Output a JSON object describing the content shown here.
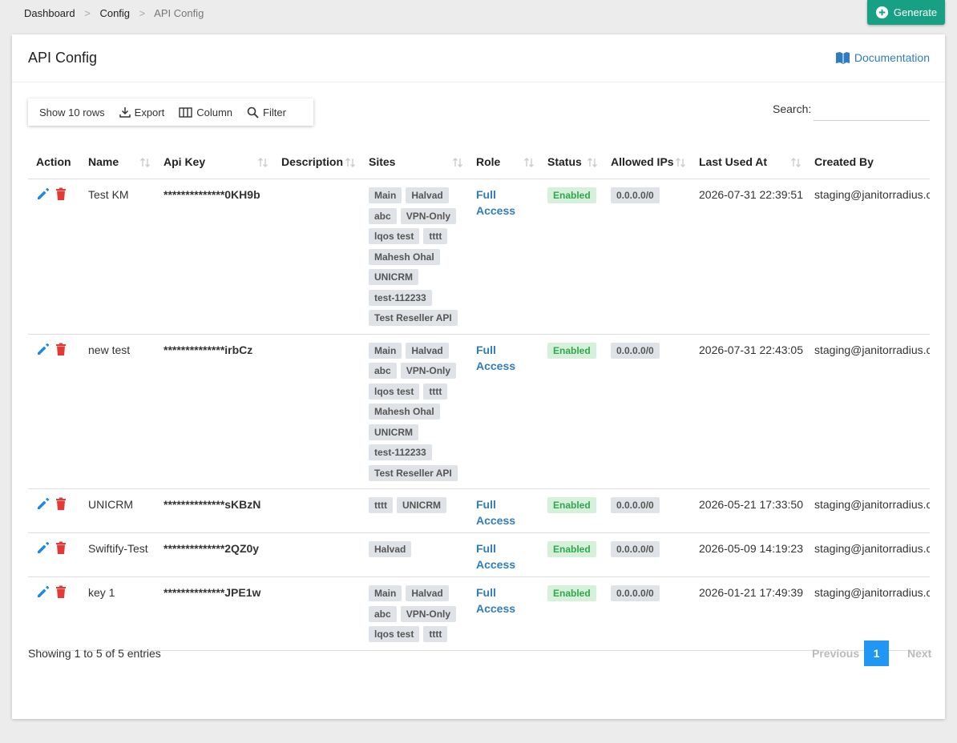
{
  "breadcrumb": [
    "Dashboard",
    "Config",
    "API Config"
  ],
  "breadcrumb_separator": ">",
  "generate_button": "Generate",
  "card": {
    "title": "API Config",
    "documentation": "Documentation"
  },
  "toolbar": [
    "Show 10 rows",
    "Export",
    "Column",
    "Filter"
  ],
  "search_label": "Search:",
  "table": {
    "columns": [
      "Action",
      "Name",
      "Api Key",
      "Description",
      "Sites",
      "Role",
      "Status",
      "Allowed IPs",
      "Last Used At",
      "Created By"
    ],
    "rows": [
      {
        "name": "Test KM",
        "api_key": "**************0KH9b",
        "sites": [
          "Main",
          "Halvad",
          "abc",
          "VPN-Only",
          "lqos test",
          "tttt",
          "Mahesh Ohal",
          "UNICRM",
          "test-112233",
          "Test Reseller API"
        ],
        "role": "Full Access",
        "status": "Enabled",
        "allowed_ips": "0.0.0.0/0",
        "last_used_at": "2026-07-31 22:39:51",
        "created_by": "staging@janitorradius.co"
      },
      {
        "name": "new test",
        "api_key": "**************irbCz",
        "sites": [
          "Main",
          "Halvad",
          "abc",
          "VPN-Only",
          "lqos test",
          "tttt",
          "Mahesh Ohal",
          "UNICRM",
          "test-112233",
          "Test Reseller API"
        ],
        "role": "Full Access",
        "status": "Enabled",
        "allowed_ips": "0.0.0.0/0",
        "last_used_at": "2026-07-31 22:43:05",
        "created_by": "staging@janitorradius.co"
      },
      {
        "name": "UNICRM",
        "api_key": "**************sKBzN",
        "sites": [
          "tttt",
          "UNICRM"
        ],
        "role": "Full Access",
        "status": "Enabled",
        "allowed_ips": "0.0.0.0/0",
        "last_used_at": "2026-05-21 17:33:50",
        "created_by": "staging@janitorradius.co"
      },
      {
        "name": "Swiftify-Test",
        "api_key": "**************2QZ0y",
        "sites": [
          "Halvad"
        ],
        "role": "Full Access",
        "status": "Enabled",
        "allowed_ips": "0.0.0.0/0",
        "last_used_at": "2026-05-09 14:19:23",
        "created_by": "staging@janitorradius.co"
      },
      {
        "name": "key 1",
        "api_key": "**************JPE1w",
        "sites": [
          "Main",
          "Halvad",
          "abc",
          "VPN-Only",
          "lqos test",
          "tttt"
        ],
        "role": "Full Access",
        "status": "Enabled",
        "allowed_ips": "0.0.0.0/0",
        "last_used_at": "2026-01-21 17:49:39",
        "created_by": "staging@janitorradius.co"
      }
    ]
  },
  "footer": {
    "info": "Showing 1 to 5 of 5 entries",
    "previous": "Previous",
    "page": 1,
    "next": "Next"
  }
}
